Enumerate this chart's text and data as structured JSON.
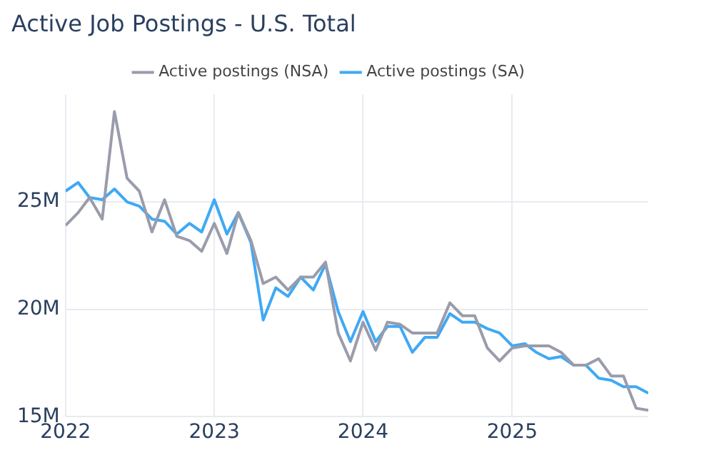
{
  "chart_data": {
    "type": "line",
    "title": "Active Job Postings - U.S. Total",
    "x": [
      "2022-01",
      "2022-02",
      "2022-03",
      "2022-04",
      "2022-05",
      "2022-06",
      "2022-07",
      "2022-08",
      "2022-09",
      "2022-10",
      "2022-11",
      "2022-12",
      "2023-01",
      "2023-02",
      "2023-03",
      "2023-04",
      "2023-05",
      "2023-06",
      "2023-07",
      "2023-08",
      "2023-09",
      "2023-10",
      "2023-11",
      "2023-12",
      "2024-01",
      "2024-02",
      "2024-03",
      "2024-04",
      "2024-05",
      "2024-06",
      "2024-07",
      "2024-08",
      "2024-09",
      "2024-10",
      "2024-11",
      "2024-12",
      "2025-01",
      "2025-02",
      "2025-03",
      "2025-04",
      "2025-05",
      "2025-06",
      "2025-07",
      "2025-08",
      "2025-09",
      "2025-10",
      "2025-11",
      "2025-12"
    ],
    "series": [
      {
        "name": "Active postings (NSA)",
        "color": "#9a9cab",
        "values": [
          23.9,
          24.5,
          25.2,
          24.2,
          29.2,
          26.1,
          25.5,
          23.6,
          25.1,
          23.4,
          23.2,
          22.7,
          24.0,
          22.6,
          24.5,
          23.2,
          21.2,
          21.5,
          20.9,
          21.5,
          21.5,
          22.2,
          18.9,
          17.6,
          19.4,
          18.1,
          19.4,
          19.3,
          18.9,
          18.9,
          18.9,
          20.3,
          19.7,
          19.7,
          18.2,
          17.6,
          18.2,
          18.3,
          18.3,
          18.3,
          18.0,
          17.4,
          17.4,
          17.7,
          16.9,
          16.9,
          15.4,
          15.3
        ]
      },
      {
        "name": "Active postings (SA)",
        "color": "#3fa9f5",
        "values": [
          25.5,
          25.9,
          25.2,
          25.1,
          25.6,
          25.0,
          24.8,
          24.2,
          24.1,
          23.5,
          24.0,
          23.6,
          25.1,
          23.5,
          24.5,
          23.1,
          19.5,
          21.0,
          20.6,
          21.5,
          20.9,
          22.1,
          19.9,
          18.5,
          19.9,
          18.5,
          19.2,
          19.2,
          18.0,
          18.7,
          18.7,
          19.8,
          19.4,
          19.4,
          19.1,
          18.9,
          18.3,
          18.4,
          18.0,
          17.7,
          17.8,
          17.4,
          17.4,
          16.8,
          16.7,
          16.4,
          16.4,
          16.1
        ]
      }
    ],
    "xlim": [
      "2022-01",
      "2025-12"
    ],
    "xticks": [
      {
        "value": "2022",
        "label": "2022"
      },
      {
        "value": "2023",
        "label": "2023"
      },
      {
        "value": "2024",
        "label": "2024"
      },
      {
        "value": "2025",
        "label": "2025"
      }
    ],
    "ylim": [
      15,
      30
    ],
    "yticks": [
      {
        "value": 15,
        "label": "15M"
      },
      {
        "value": 20,
        "label": "20M"
      },
      {
        "value": 25,
        "label": "25M"
      }
    ],
    "grid": true,
    "legend": "top",
    "marker": "none",
    "line_style": "solid"
  }
}
